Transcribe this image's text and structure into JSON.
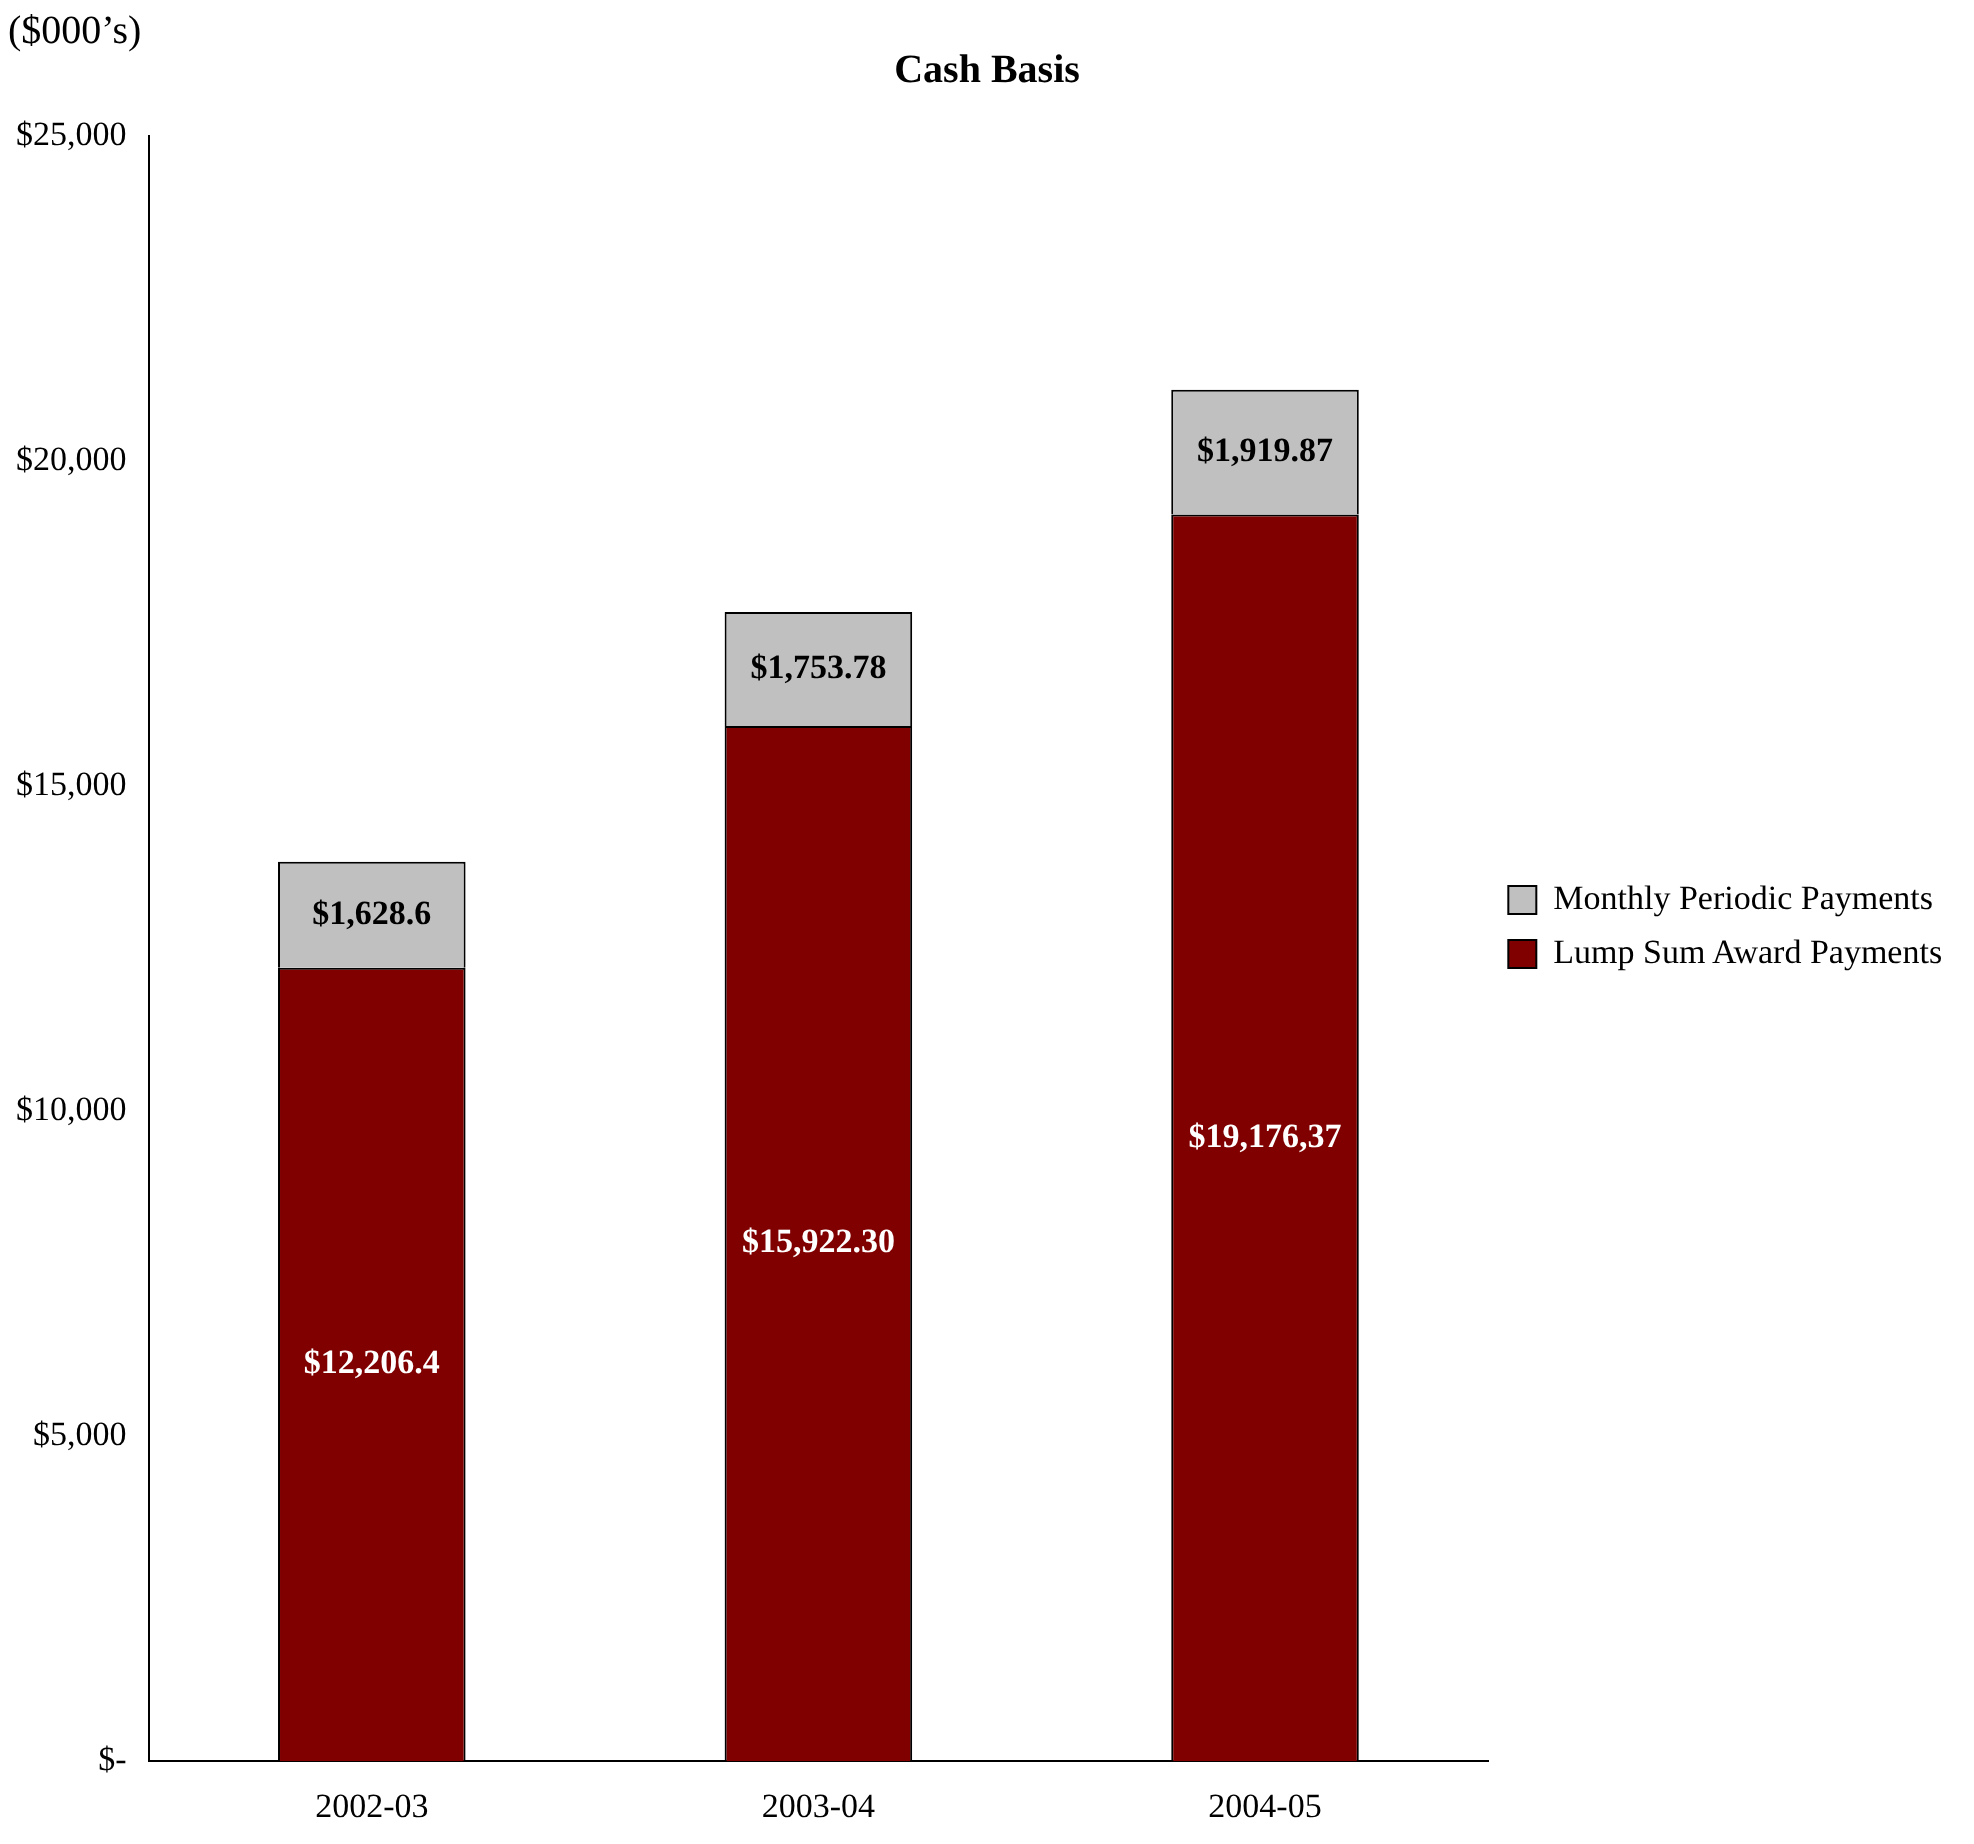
{
  "chart_data": {
    "type": "bar",
    "title": "Cash Basis",
    "ylabel": "($000’s)",
    "categories": [
      "2002-03",
      "2003-04",
      "2004-05"
    ],
    "stacked": true,
    "series": [
      {
        "name": "Lump Sum Award Payments",
        "color": "#800000",
        "values": [
          12206.4,
          15922.3,
          19176.37
        ],
        "value_labels": [
          "$12,206.4",
          "$15,922.30",
          "$19,176,37"
        ]
      },
      {
        "name": "Monthly Periodic Payments",
        "color": "#c0c0c0",
        "values": [
          1628.6,
          1753.78,
          1919.87
        ],
        "value_labels": [
          "$1,628.6",
          "$1,753.78",
          "$1,919.87"
        ]
      }
    ],
    "ylim": [
      0,
      25000
    ],
    "yticks": [
      {
        "value": 0,
        "label": "$-"
      },
      {
        "value": 5000,
        "label": "$5,000"
      },
      {
        "value": 10000,
        "label": "$10,000"
      },
      {
        "value": 15000,
        "label": "$15,000"
      },
      {
        "value": 20000,
        "label": "$20,000"
      },
      {
        "value": 25000,
        "label": "$25,000"
      }
    ],
    "grid": false,
    "legend": "right"
  }
}
